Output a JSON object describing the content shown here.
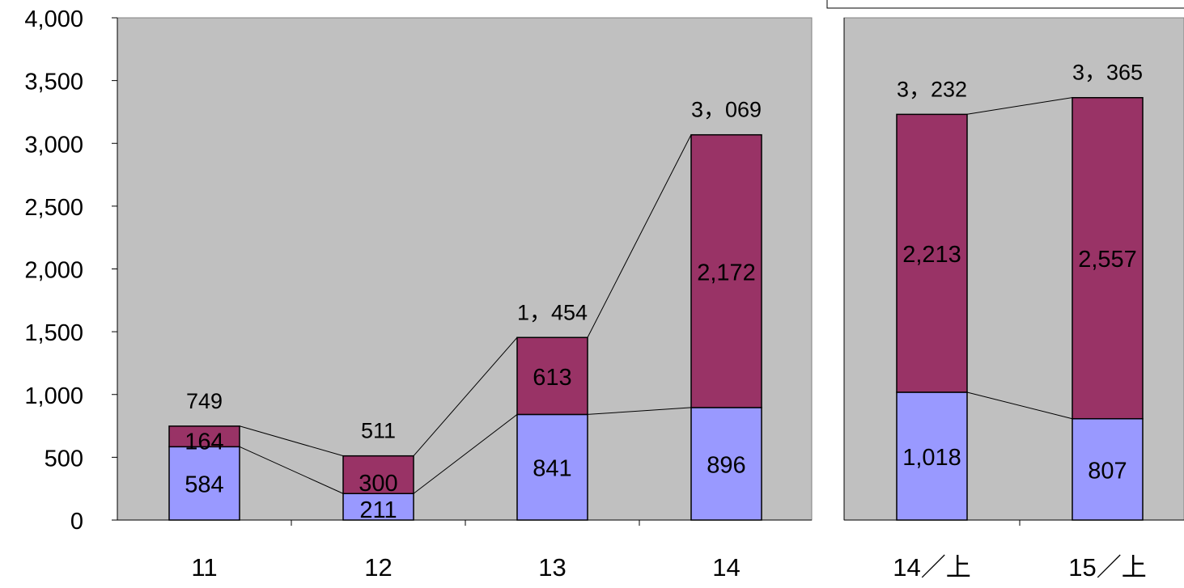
{
  "chart_data": [
    {
      "type": "bar",
      "stacked": true,
      "categories": [
        "11",
        "12",
        "13",
        "14"
      ],
      "series": [
        {
          "values": [
            584,
            211,
            841,
            896
          ],
          "value_labels": [
            "584",
            "211",
            "841",
            "896"
          ]
        },
        {
          "values": [
            164,
            300,
            613,
            2172
          ],
          "value_labels": [
            "164",
            "300",
            "613",
            "2,172"
          ]
        }
      ],
      "totals": [
        749,
        511,
        1454,
        3069
      ],
      "total_labels": [
        "749",
        "511",
        "1，454",
        "3，069"
      ],
      "ylim": [
        0,
        4000
      ],
      "yticks": [
        "0",
        "500",
        "1,000",
        "1,500",
        "2,000",
        "2,500",
        "3,000",
        "3,500",
        "4,000"
      ],
      "series_lines": true,
      "grid": false
    },
    {
      "type": "bar",
      "stacked": true,
      "categories": [
        "14／上",
        "15／上"
      ],
      "series": [
        {
          "values": [
            1018,
            807
          ],
          "value_labels": [
            "1,018",
            "807"
          ]
        },
        {
          "values": [
            2213,
            2557
          ],
          "value_labels": [
            "2,213",
            "2,557"
          ]
        }
      ],
      "totals": [
        3232,
        3365
      ],
      "total_labels": [
        "3，232",
        "3，365"
      ],
      "ylim": [
        0,
        4000
      ],
      "series_lines": true,
      "grid": false
    }
  ],
  "colors": {
    "plot_bg": "#c0c0c0",
    "series_lower": "#9999ff",
    "series_upper": "#993366",
    "outline": "#000000",
    "text": "#000000"
  }
}
